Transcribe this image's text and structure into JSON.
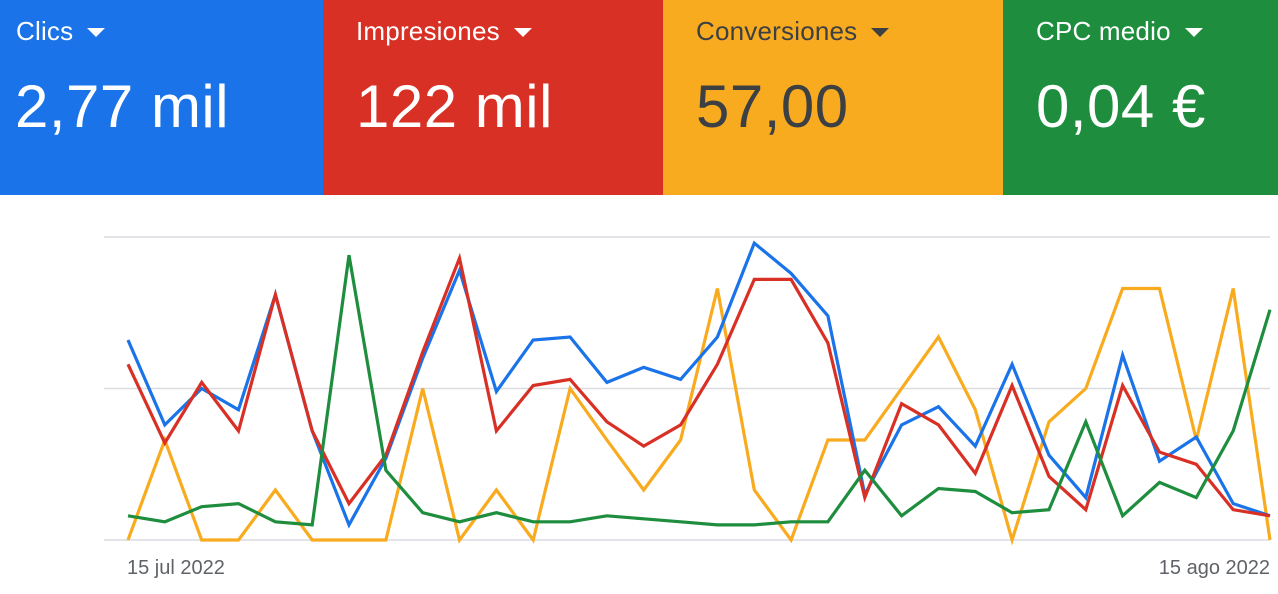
{
  "scorecards": [
    {
      "label": "Clics",
      "value": "2,77 mil",
      "bg": "#1a73e8",
      "fg": "#ffffff"
    },
    {
      "label": "Impresiones",
      "value": "122 mil",
      "bg": "#d93025",
      "fg": "#ffffff"
    },
    {
      "label": "Conversiones",
      "value": "57,00",
      "bg": "#f9ab1f",
      "fg": "#3c4043"
    },
    {
      "label": "CPC medio",
      "value": "0,04 €",
      "bg": "#1e8e3e",
      "fg": "#ffffff"
    }
  ],
  "chart_data": {
    "type": "line",
    "x_tick_labels": [
      "15 jul 2022",
      "15 ago 2022"
    ],
    "grid": true,
    "ylim": [
      0,
      100
    ],
    "series": [
      {
        "name": "Clics",
        "color": "#1a73e8",
        "values": [
          66,
          38,
          50,
          43,
          81,
          36,
          5,
          27,
          60,
          89,
          49,
          66,
          67,
          52,
          57,
          53,
          67,
          98,
          88,
          74,
          15,
          38,
          44,
          31,
          58,
          28,
          14,
          61,
          26,
          34,
          12,
          8
        ]
      },
      {
        "name": "Impresiones",
        "color": "#d93025",
        "values": [
          58,
          32,
          52,
          36,
          81,
          36,
          12,
          28,
          62,
          93,
          36,
          51,
          53,
          39,
          31,
          38,
          58,
          86,
          86,
          65,
          14,
          45,
          38,
          22,
          51,
          21,
          10,
          51,
          29,
          25,
          10,
          8
        ]
      },
      {
        "name": "Conversiones",
        "color": "#f9ab1f",
        "values": [
          0,
          33,
          0,
          0,
          16.5,
          0,
          0,
          0,
          50,
          0,
          16.5,
          0,
          50,
          33,
          16.5,
          33,
          83,
          16.5,
          0,
          33,
          33,
          50,
          67,
          43,
          0,
          39,
          50,
          83,
          83,
          33,
          83,
          0
        ]
      },
      {
        "name": "CPC medio",
        "color": "#1e8e3e",
        "values": [
          8,
          6,
          11,
          12,
          6,
          5,
          94,
          23,
          9,
          6,
          9,
          6,
          6,
          8,
          7,
          6,
          5,
          5,
          6,
          6,
          23,
          8,
          17,
          16,
          9,
          10,
          39,
          8,
          19,
          14,
          36,
          76
        ]
      }
    ]
  }
}
